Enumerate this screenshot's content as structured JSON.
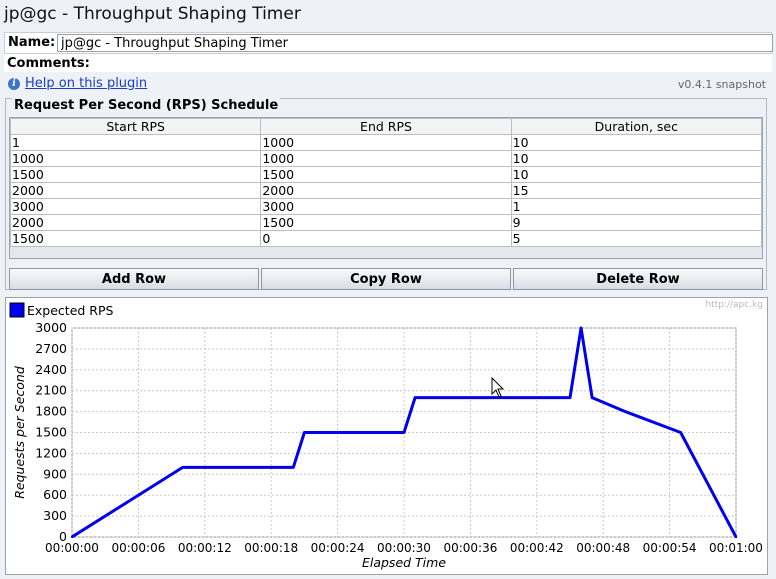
{
  "window": {
    "title": "jp@gc - Throughput Shaping Timer"
  },
  "form": {
    "name_label": "Name:",
    "name_value": "jp@gc - Throughput Shaping Timer",
    "comments_label": "Comments:",
    "help_link": "Help on this plugin",
    "version": "v0.4.1 snapshot"
  },
  "schedule": {
    "legend": "Request Per Second (RPS) Schedule",
    "columns": [
      "Start RPS",
      "End RPS",
      "Duration, sec"
    ],
    "rows": [
      [
        "1",
        "1000",
        "10"
      ],
      [
        "1000",
        "1000",
        "10"
      ],
      [
        "1500",
        "1500",
        "10"
      ],
      [
        "2000",
        "2000",
        "15"
      ],
      [
        "3000",
        "3000",
        "1"
      ],
      [
        "2000",
        "1500",
        "9"
      ],
      [
        "1500",
        "0",
        "5"
      ]
    ]
  },
  "buttons": {
    "add": "Add Row",
    "copy": "Copy Row",
    "delete": "Delete Row"
  },
  "colors": {
    "series": "#0000ee",
    "grid": "#c8c8c8"
  },
  "chart_data": {
    "type": "line",
    "watermark": "http://apc.kg",
    "xlabel": "Elapsed Time",
    "ylabel": "Requests per Second",
    "legend_position": "top-left",
    "grid": true,
    "ylim": [
      0,
      3000
    ],
    "yticks": [
      0,
      300,
      600,
      900,
      1200,
      1500,
      1800,
      2100,
      2400,
      2700,
      3000
    ],
    "xlim": [
      "00:00:00",
      "00:01:00"
    ],
    "xticks": [
      "00:00:00",
      "00:00:06",
      "00:00:12",
      "00:00:18",
      "00:00:24",
      "00:00:30",
      "00:00:36",
      "00:00:42",
      "00:00:48",
      "00:00:54",
      "00:01:00"
    ],
    "series": [
      {
        "name": "Expected RPS",
        "color": "#0000ee",
        "points": [
          [
            "00:00:00",
            1
          ],
          [
            "00:00:10",
            1000
          ],
          [
            "00:00:20",
            1000
          ],
          [
            "00:00:21",
            1500
          ],
          [
            "00:00:30",
            1500
          ],
          [
            "00:00:31",
            2000
          ],
          [
            "00:00:45",
            2000
          ],
          [
            "00:00:46",
            3000
          ],
          [
            "00:00:47",
            2000
          ],
          [
            "00:00:50",
            1800
          ],
          [
            "00:00:55",
            1500
          ],
          [
            "00:01:00",
            0
          ]
        ]
      }
    ]
  }
}
